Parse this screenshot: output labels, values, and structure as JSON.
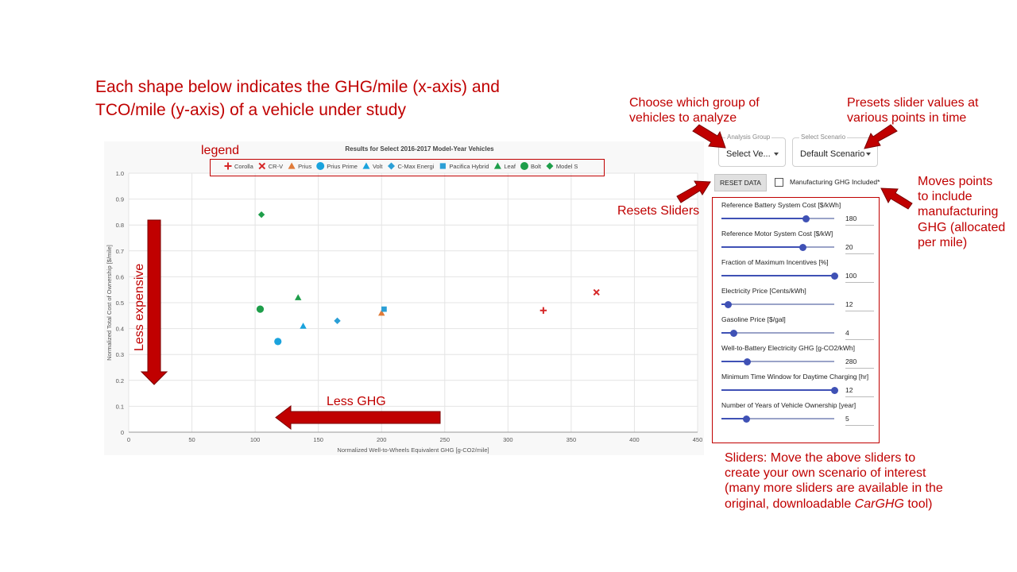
{
  "heading": {
    "line1": "Each shape below indicates the GHG/mile (x-axis) and",
    "line2": "TCO/mile (y-axis) of a vehicle under study"
  },
  "annotations": {
    "legend": "legend",
    "less_expensive": "Less expensive",
    "less_ghg": "Less GHG",
    "choose_group": [
      "Choose which group of",
      "vehicles to analyze"
    ],
    "presets": [
      "Presets slider values at",
      "various points in time"
    ],
    "resets": "Resets Sliders",
    "moves_points": [
      "Moves points",
      "to include",
      "manufacturing",
      "GHG (allocated",
      "per mile)"
    ],
    "sliders_note_1": "Sliders: Move the above sliders to",
    "sliders_note_2": "create your own scenario of interest",
    "sliders_note_3": "(many more sliders are available in the",
    "sliders_note_4_prefix": "original, downloadable ",
    "sliders_note_4_italic": "CarGHG",
    "sliders_note_4_suffix": " tool)"
  },
  "controls": {
    "analysis_group": {
      "label": "Analysis Group",
      "value": "Select Ve..."
    },
    "scenario": {
      "label": "Select Scenario",
      "value": "Default Scenario"
    },
    "reset_label": "RESET DATA",
    "manufacturing_label": "Manufacturing GHG Included*",
    "manufacturing_checked": false
  },
  "sliders": [
    {
      "label": "Reference Battery System Cost [$/kWh]",
      "value": "180",
      "fraction": 0.75
    },
    {
      "label": "Reference Motor System Cost [$/kW]",
      "value": "20",
      "fraction": 0.72
    },
    {
      "label": "Fraction of Maximum Incentives [%]",
      "value": "100",
      "fraction": 1.0
    },
    {
      "label": "Electricity Price [Cents/kWh]",
      "value": "12",
      "fraction": 0.06
    },
    {
      "label": "Gasoline Price [$/gal]",
      "value": "4",
      "fraction": 0.11
    },
    {
      "label": "Well-to-Battery Electricity GHG [g-CO2/kWh]",
      "value": "280",
      "fraction": 0.23
    },
    {
      "label": "Minimum Time Window for Daytime Charging [hr]",
      "value": "12",
      "fraction": 1.0
    },
    {
      "label": "Number of Years of Vehicle Ownership [year]",
      "value": "5",
      "fraction": 0.22
    }
  ],
  "chart_data": {
    "type": "scatter",
    "title": "Results for Select 2016-2017 Model-Year Vehicles",
    "xlabel": "Normalized Well-to-Wheels Equivalent GHG [g-CO2/mile]",
    "ylabel": "Normalized Total Cost of Ownership [$/mile]",
    "xlim": [
      0,
      450
    ],
    "ylim": [
      0,
      1.0
    ],
    "xticks": [
      0,
      50,
      100,
      150,
      200,
      250,
      300,
      350,
      400,
      450
    ],
    "yticks": [
      0,
      0.1,
      0.2,
      0.3,
      0.4,
      0.5,
      0.6,
      0.7,
      0.8,
      0.9,
      1.0
    ],
    "ytick_labels": [
      "0",
      "0.1",
      "0.2",
      "0.3",
      "0.4",
      "0.5",
      "0.6",
      "0.7",
      "0.8",
      "0.9",
      "1.0"
    ],
    "grid": true,
    "legend_position": "top",
    "series": [
      {
        "name": "Corolla",
        "marker": "plus",
        "color": "#d62728",
        "x": 328,
        "y": 0.47
      },
      {
        "name": "CR-V",
        "marker": "x",
        "color": "#d62728",
        "x": 370,
        "y": 0.54
      },
      {
        "name": "Prius",
        "marker": "triangle",
        "color": "#e07b39",
        "x": 200,
        "y": 0.46
      },
      {
        "name": "Prius Prime",
        "marker": "circle",
        "color": "#1aa3dd",
        "x": 118,
        "y": 0.35
      },
      {
        "name": "Volt",
        "marker": "triangle",
        "color": "#1aa3dd",
        "x": 138,
        "y": 0.41
      },
      {
        "name": "C-Max Energi",
        "marker": "diamond",
        "color": "#2b9fd6",
        "x": 165,
        "y": 0.43
      },
      {
        "name": "Pacifica Hybrid",
        "marker": "square",
        "color": "#2b9fd6",
        "x": 202,
        "y": 0.475
      },
      {
        "name": "Leaf",
        "marker": "triangle",
        "color": "#1e9e4a",
        "x": 134,
        "y": 0.52
      },
      {
        "name": "Bolt",
        "marker": "circle",
        "color": "#1e9e4a",
        "x": 104,
        "y": 0.475
      },
      {
        "name": "Model S",
        "marker": "diamond",
        "color": "#1e9e4a",
        "x": 105,
        "y": 0.84
      }
    ]
  }
}
